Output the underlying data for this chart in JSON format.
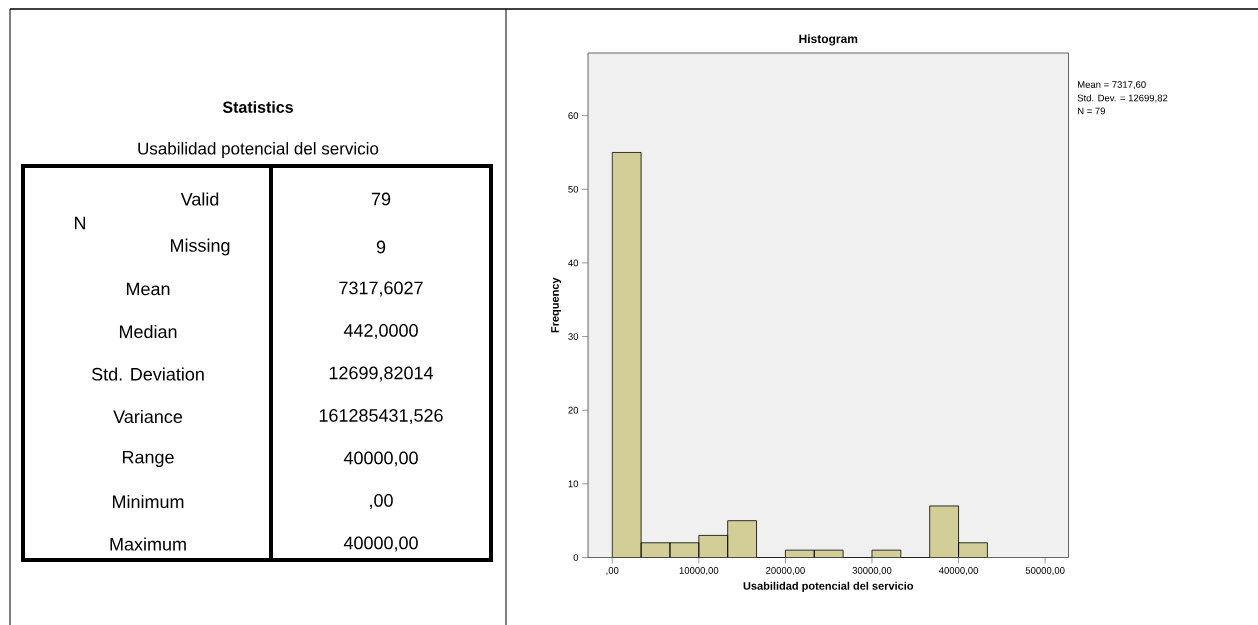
{
  "chart_data": [
    {
      "type": "other",
      "title": "Statistics",
      "subtitle": "Usabilidad potencial del servicio",
      "annotations": [
        "N",
        "Valid",
        "79",
        "Missing",
        "9",
        "Mean",
        "7317,6027",
        "Median",
        "442,0000",
        "Std. Deviation",
        "12699,82014",
        "Variance",
        "161285431,526",
        "Range",
        "40000,00",
        "Minimum",
        ",00",
        "Maximum",
        "40000,00"
      ]
    },
    {
      "type": "histogram",
      "title": "Histogram",
      "xlabel": "Usabilidad potencial del servicio",
      "ylabel": "Frequency",
      "bins": [
        0,
        3333.33,
        6666.67,
        10000,
        13333.33,
        16666.67,
        20000,
        23333.33,
        26666.67,
        30000,
        33333.33,
        36666.67,
        40000,
        43333.33
      ],
      "values": [
        55,
        2,
        2,
        3,
        5,
        0,
        1,
        1,
        0,
        1,
        0,
        7,
        2
      ],
      "color": "#d3ce97",
      "xlim": [
        -2800,
        52700
      ],
      "ylim": [
        0,
        68.5
      ],
      "xticks": [
        {
          "value": 0,
          "label": ",00"
        },
        {
          "value": 10000,
          "label": "10000,00"
        },
        {
          "value": 20000,
          "label": "20000,00"
        },
        {
          "value": 30000,
          "label": "30000,00"
        },
        {
          "value": 40000,
          "label": "40000,00"
        },
        {
          "value": 50000,
          "label": "50000,00"
        }
      ],
      "yticks": [
        0,
        10,
        20,
        30,
        40,
        50,
        60
      ],
      "annotations": [
        "Mean = 7317,60",
        "Std. Dev. = 12699,82",
        "N = 79"
      ]
    }
  ]
}
